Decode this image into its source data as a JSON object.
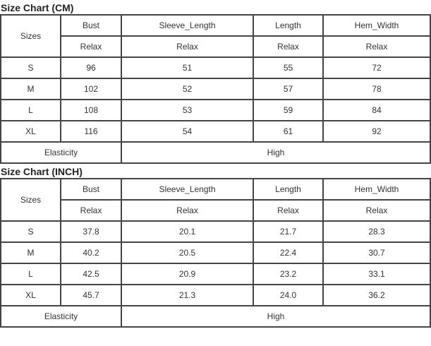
{
  "tables": [
    {
      "title": "Size Chart (CM)",
      "sizes_header": "Sizes",
      "columns": [
        "Bust",
        "Sleeve_Length",
        "Length",
        "Hem_Width"
      ],
      "fit": [
        "Relax",
        "Relax",
        "Relax",
        "Relax"
      ],
      "rows": [
        {
          "size": "S",
          "values": [
            "96",
            "51",
            "55",
            "72"
          ]
        },
        {
          "size": "M",
          "values": [
            "102",
            "52",
            "57",
            "78"
          ]
        },
        {
          "size": "L",
          "values": [
            "108",
            "53",
            "59",
            "84"
          ]
        },
        {
          "size": "XL",
          "values": [
            "116",
            "54",
            "61",
            "92"
          ]
        }
      ],
      "elasticity_label": "Elasticity",
      "elasticity_value": "High"
    },
    {
      "title": "Size Chart (INCH)",
      "sizes_header": "Sizes",
      "columns": [
        "Bust",
        "Sleeve_Length",
        "Length",
        "Hem_Width"
      ],
      "fit": [
        "Relax",
        "Relax",
        "Relax",
        "Relax"
      ],
      "rows": [
        {
          "size": "S",
          "values": [
            "37.8",
            "20.1",
            "21.7",
            "28.3"
          ]
        },
        {
          "size": "M",
          "values": [
            "40.2",
            "20.5",
            "22.4",
            "30.7"
          ]
        },
        {
          "size": "L",
          "values": [
            "42.5",
            "20.9",
            "23.2",
            "33.1"
          ]
        },
        {
          "size": "XL",
          "values": [
            "45.7",
            "21.3",
            "24.0",
            "36.2"
          ]
        }
      ],
      "elasticity_label": "Elasticity",
      "elasticity_value": "High"
    }
  ]
}
